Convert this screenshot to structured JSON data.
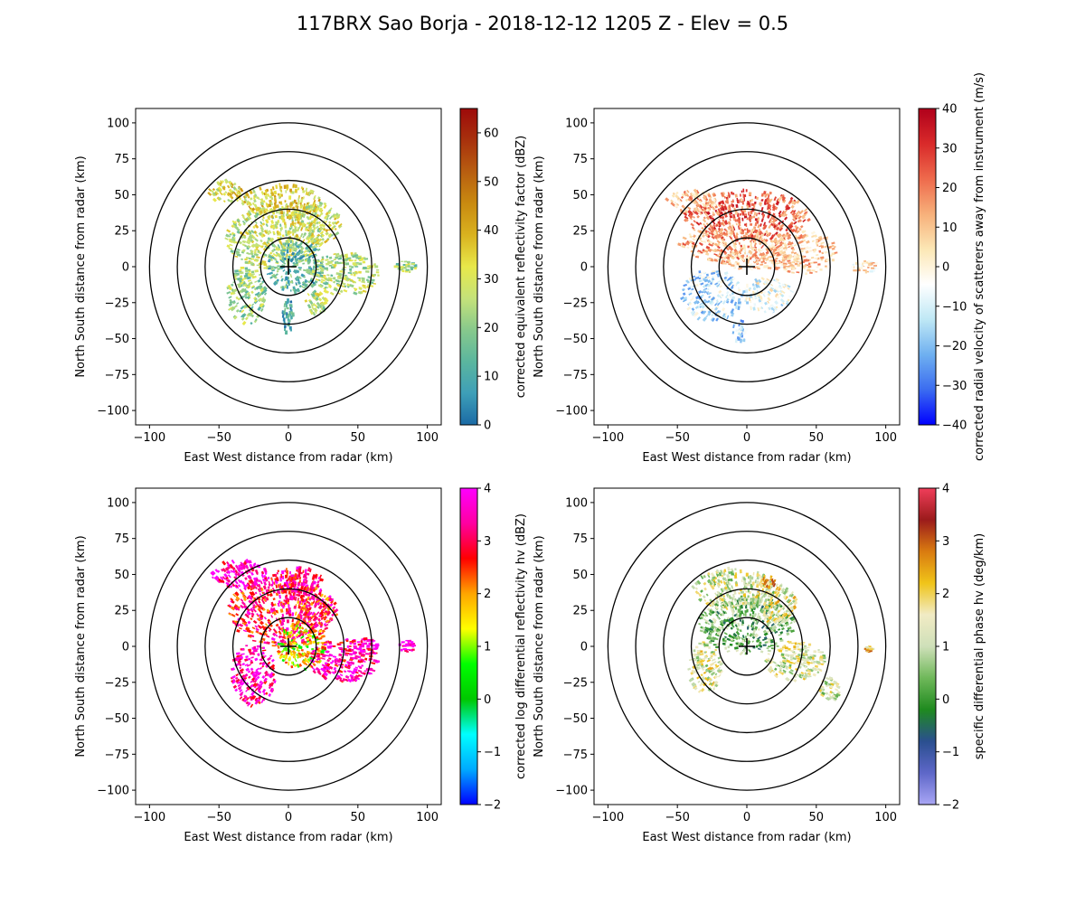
{
  "figure": {
    "title": "117BRX Sao Borja - 2018-12-12 1205 Z -  Elev = 0.5"
  },
  "chart_data": [
    {
      "type": "heatmap",
      "title": "",
      "xlabel": "East West distance from radar (km)",
      "ylabel": "North South distance from radar (km)",
      "xlim": [
        -110,
        110
      ],
      "ylim": [
        -110,
        110
      ],
      "xticks": [
        -100,
        -50,
        0,
        50,
        100
      ],
      "yticks": [
        -100,
        -75,
        -50,
        -25,
        0,
        25,
        50,
        75,
        100
      ],
      "range_rings_km": [
        20,
        40,
        60,
        80,
        100
      ],
      "colorbar": {
        "label": "corrected equivalent reflectivity factor (dBZ)",
        "min": 0,
        "max": 65,
        "ticks": [
          0,
          10,
          20,
          30,
          40,
          50,
          60
        ],
        "colors": [
          "#1b6aa5",
          "#3e9fb8",
          "#5bb69e",
          "#87c98c",
          "#c5e27a",
          "#e8e84a",
          "#d9b21f",
          "#c98a10",
          "#b85e10",
          "#a8310d",
          "#9d0a0a"
        ]
      },
      "echo_cells": [
        {
          "x": -10,
          "y": 20,
          "rx": 35,
          "ry": 22,
          "v": 27
        },
        {
          "x": -5,
          "y": 45,
          "rx": 28,
          "ry": 12,
          "v": 34
        },
        {
          "x": -45,
          "y": 52,
          "rx": 12,
          "ry": 8,
          "v": 32
        },
        {
          "x": 20,
          "y": 30,
          "rx": 18,
          "ry": 15,
          "v": 30
        },
        {
          "x": 5,
          "y": 0,
          "rx": 20,
          "ry": 18,
          "v": 14
        },
        {
          "x": -30,
          "y": -20,
          "rx": 14,
          "ry": 20,
          "v": 22
        },
        {
          "x": 40,
          "y": -5,
          "rx": 25,
          "ry": 15,
          "v": 25
        },
        {
          "x": 20,
          "y": -25,
          "rx": 8,
          "ry": 8,
          "v": 26
        },
        {
          "x": 85,
          "y": 0,
          "rx": 8,
          "ry": 4,
          "v": 22
        },
        {
          "x": 0,
          "y": -35,
          "rx": 4,
          "ry": 12,
          "v": 8
        }
      ]
    },
    {
      "type": "heatmap",
      "title": "",
      "xlabel": "East West distance from radar (km)",
      "ylabel": "North South distance from radar (km)",
      "xlim": [
        -110,
        110
      ],
      "ylim": [
        -110,
        110
      ],
      "xticks": [
        -100,
        -50,
        0,
        50,
        100
      ],
      "yticks": [
        -100,
        -75,
        -50,
        -25,
        0,
        25,
        50,
        75,
        100
      ],
      "range_rings_km": [
        20,
        40,
        60,
        80,
        100
      ],
      "colorbar": {
        "label": "corrected radial velocity of scatterers away from instrument (m/s)",
        "min": -40,
        "max": 40,
        "ticks": [
          -40,
          -30,
          -20,
          -10,
          0,
          10,
          20,
          30,
          40
        ],
        "colors": [
          "#0000ff",
          "#3b6cf0",
          "#6fb0f0",
          "#bfe8f5",
          "#ffffff",
          "#fce7b5",
          "#f7b07a",
          "#ee6a4c",
          "#d92a2a",
          "#b0001b"
        ]
      },
      "echo_cells": [
        {
          "x": 0,
          "y": 35,
          "rx": 45,
          "ry": 18,
          "v": 22
        },
        {
          "x": -10,
          "y": 15,
          "rx": 40,
          "ry": 12,
          "v": 14
        },
        {
          "x": -40,
          "y": 45,
          "rx": 18,
          "ry": 8,
          "v": 10
        },
        {
          "x": 10,
          "y": 5,
          "rx": 30,
          "ry": 8,
          "v": 6
        },
        {
          "x": -25,
          "y": -20,
          "rx": 22,
          "ry": 18,
          "v": -12
        },
        {
          "x": 40,
          "y": 10,
          "rx": 25,
          "ry": 15,
          "v": 8
        },
        {
          "x": 15,
          "y": -20,
          "rx": 18,
          "ry": 12,
          "v": -6
        },
        {
          "x": 85,
          "y": 0,
          "rx": 10,
          "ry": 4,
          "v": 4
        },
        {
          "x": -5,
          "y": -45,
          "rx": 5,
          "ry": 8,
          "v": -15
        }
      ]
    },
    {
      "type": "heatmap",
      "title": "",
      "xlabel": "East West distance from radar (km)",
      "ylabel": "North South distance from radar (km)",
      "xlim": [
        -110,
        110
      ],
      "ylim": [
        -110,
        110
      ],
      "xticks": [
        -100,
        -50,
        0,
        50,
        100
      ],
      "yticks": [
        -100,
        -75,
        -50,
        -25,
        0,
        25,
        50,
        75,
        100
      ],
      "range_rings_km": [
        20,
        40,
        60,
        80,
        100
      ],
      "colorbar": {
        "label": "corrected log differential reflectivity hv (dBZ)",
        "min": -2,
        "max": 4,
        "ticks": [
          -2,
          -1,
          0,
          1,
          2,
          3,
          4
        ],
        "colors": [
          "#0000ff",
          "#00aaff",
          "#00ffff",
          "#00c800",
          "#00ff00",
          "#ffff00",
          "#ffa500",
          "#ff0000",
          "#ff00a0",
          "#ff00ff"
        ]
      },
      "echo_cells": [
        {
          "x": -5,
          "y": 25,
          "rx": 38,
          "ry": 25,
          "v": 3.0
        },
        {
          "x": -35,
          "y": 50,
          "rx": 20,
          "ry": 10,
          "v": 3.7
        },
        {
          "x": 5,
          "y": 45,
          "rx": 20,
          "ry": 10,
          "v": 3.3
        },
        {
          "x": -25,
          "y": -20,
          "rx": 16,
          "ry": 22,
          "v": 3.5
        },
        {
          "x": 10,
          "y": 0,
          "rx": 18,
          "ry": 16,
          "v": 1.5
        },
        {
          "x": 40,
          "y": -10,
          "rx": 25,
          "ry": 15,
          "v": 3.4
        },
        {
          "x": 55,
          "y": 0,
          "rx": 10,
          "ry": 6,
          "v": 3.8
        },
        {
          "x": 85,
          "y": 0,
          "rx": 6,
          "ry": 4,
          "v": 3.8
        },
        {
          "x": 20,
          "y": 25,
          "rx": 15,
          "ry": 12,
          "v": 2.6
        }
      ]
    },
    {
      "type": "heatmap",
      "title": "",
      "xlabel": "East West distance from radar (km)",
      "ylabel": "North South distance from radar (km)",
      "xlim": [
        -110,
        110
      ],
      "ylim": [
        -110,
        110
      ],
      "xticks": [
        -100,
        -50,
        0,
        50,
        100
      ],
      "yticks": [
        -100,
        -75,
        -50,
        -25,
        0,
        25,
        50,
        75,
        100
      ],
      "range_rings_km": [
        20,
        40,
        60,
        80,
        100
      ],
      "colorbar": {
        "label": "specific differential phase hv (deg/km)",
        "min": -2,
        "max": 4,
        "ticks": [
          -2,
          -1,
          0,
          1,
          2,
          3,
          4
        ],
        "colors": [
          "#a9a6f5",
          "#5e67c8",
          "#2a4f8f",
          "#1f8a1f",
          "#6fb85a",
          "#cfe0b9",
          "#f1ebc4",
          "#f0c419",
          "#d97b10",
          "#9b1b1b",
          "#f03e5a"
        ]
      },
      "echo_cells": [
        {
          "x": 0,
          "y": 15,
          "rx": 35,
          "ry": 20,
          "v": 0.4
        },
        {
          "x": -10,
          "y": 40,
          "rx": 30,
          "ry": 14,
          "v": 1.2
        },
        {
          "x": 20,
          "y": 30,
          "rx": 16,
          "ry": 14,
          "v": 1.5
        },
        {
          "x": -30,
          "y": -15,
          "rx": 12,
          "ry": 18,
          "v": 1.4
        },
        {
          "x": 35,
          "y": -10,
          "rx": 22,
          "ry": 14,
          "v": 1.3
        },
        {
          "x": 15,
          "y": 45,
          "rx": 6,
          "ry": 4,
          "v": 2.5
        },
        {
          "x": 60,
          "y": -30,
          "rx": 8,
          "ry": 8,
          "v": 1.2
        },
        {
          "x": 88,
          "y": -2,
          "rx": 3,
          "ry": 2,
          "v": 2.2
        }
      ]
    }
  ]
}
